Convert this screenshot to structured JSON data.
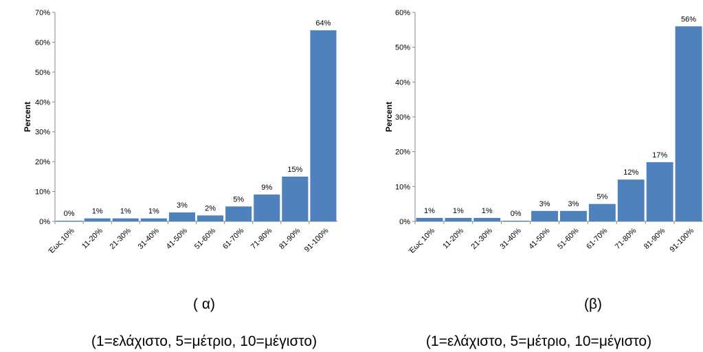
{
  "chart_data": [
    {
      "type": "bar",
      "ylabel": "Percent",
      "ylim": [
        0,
        70
      ],
      "yticks": [
        "0%",
        "10%",
        "20%",
        "30%",
        "40%",
        "50%",
        "60%",
        "70%"
      ],
      "categories": [
        "Έως 10%",
        "11-20%",
        "21-30%",
        "31-40%",
        "41-50%",
        "51-60%",
        "61-70%",
        "71-80%",
        "81-90%",
        "91-100%"
      ],
      "values": [
        0,
        1,
        1,
        1,
        3,
        2,
        5,
        9,
        15,
        64
      ],
      "data_labels": [
        "0%",
        "1%",
        "1%",
        "1%",
        "3%",
        "2%",
        "5%",
        "9%",
        "15%",
        "64%"
      ],
      "bar_color": "#4f81bd",
      "grid": false
    },
    {
      "type": "bar",
      "ylabel": "Percent",
      "ylim": [
        0,
        60
      ],
      "yticks": [
        "0%",
        "10%",
        "20%",
        "30%",
        "40%",
        "50%",
        "60%"
      ],
      "categories": [
        "Έως 10%",
        "11-20%",
        "21-30%",
        "31-40%",
        "41-50%",
        "51-60%",
        "61-70%",
        "71-80%",
        "81-90%",
        "91-100%"
      ],
      "values": [
        1,
        1,
        1,
        0,
        3,
        3,
        5,
        12,
        17,
        56
      ],
      "data_labels": [
        "1%",
        "1%",
        "1%",
        "0%",
        "3%",
        "3%",
        "5%",
        "12%",
        "17%",
        "56%"
      ],
      "bar_color": "#4f81bd",
      "grid": false
    }
  ],
  "captions": [
    {
      "title": "( α)",
      "subtitle": "(1=ελάχιστο, 5=μέτριο, 10=μέγιστο)"
    },
    {
      "title": "(β)",
      "subtitle": "(1=ελάχιστο, 5=μέτριο, 10=μέγιστο)"
    }
  ]
}
